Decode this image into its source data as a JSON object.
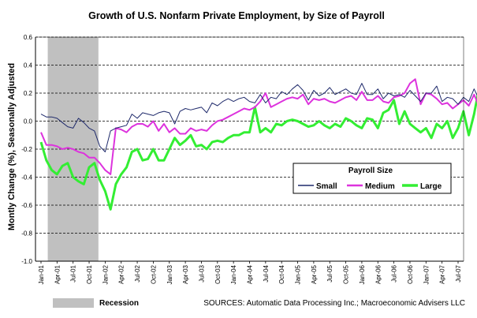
{
  "chart_data": {
    "type": "line",
    "title": "Growth of U.S. Nonfarm Private Employment, by Size of Payroll",
    "xlabel": "",
    "ylabel": "Montly Change (%), Seasonally Adjusted",
    "ylim": [
      -1.0,
      0.6
    ],
    "yticks": [
      "0.6",
      "0.4",
      "0.2",
      "0.0",
      "-0.2",
      "-0.4",
      "-0.6",
      "-0.8",
      "-1.0"
    ],
    "grid": "horizontal dashed",
    "start_month": "Jan-01",
    "x_tick_labels": [
      "Jan-01",
      "Apr-01",
      "Jul-01",
      "Oct-01",
      "Jan-02",
      "Apr-02",
      "Jul-02",
      "Oct-02",
      "Jan-03",
      "Apr-03",
      "Jul-03",
      "Oct-03",
      "Jan-04",
      "Apr-04",
      "Jul-04",
      "Oct-04",
      "Jan-05",
      "Apr-05",
      "Jul-05",
      "Oct-05",
      "Jan-06",
      "Apr-06",
      "Jul-06",
      "Oct-06",
      "Jan-07",
      "Apr-07",
      "Jul-07"
    ],
    "recession": {
      "start": "Mar-01",
      "end": "Nov-01",
      "label": "Recession",
      "color": "#c0c0c0"
    },
    "legend": {
      "title": "Payroll Size",
      "placement": "center-right"
    },
    "series": [
      {
        "name": "Small",
        "color": "#1f2a6b",
        "width": 1,
        "values": [
          0.05,
          0.03,
          0.03,
          0.02,
          -0.01,
          -0.04,
          -0.05,
          0.02,
          -0.01,
          -0.05,
          -0.07,
          -0.18,
          -0.22,
          -0.07,
          -0.05,
          -0.04,
          -0.03,
          0.05,
          0.02,
          0.06,
          0.05,
          0.04,
          0.06,
          0.07,
          0.06,
          -0.02,
          0.07,
          0.09,
          0.08,
          0.09,
          0.1,
          0.06,
          0.13,
          0.11,
          0.14,
          0.16,
          0.14,
          0.16,
          0.17,
          0.14,
          0.13,
          0.19,
          0.13,
          0.17,
          0.16,
          0.21,
          0.19,
          0.23,
          0.26,
          0.22,
          0.15,
          0.22,
          0.18,
          0.2,
          0.24,
          0.19,
          0.21,
          0.23,
          0.2,
          0.19,
          0.27,
          0.19,
          0.19,
          0.23,
          0.16,
          0.2,
          0.18,
          0.19,
          0.17,
          0.22,
          0.18,
          0.14,
          0.2,
          0.2,
          0.25,
          0.14,
          0.17,
          0.16,
          0.12,
          0.17,
          0.14,
          0.23,
          0.15,
          0.14,
          0.12,
          0.13,
          0.17,
          0.16,
          0.16,
          0.12,
          0.14,
          0.16,
          0.17,
          0.14,
          0.12,
          0.08,
          0.13,
          0.18,
          0.05,
          0.09
        ]
      },
      {
        "name": "Medium",
        "color": "#dd33dd",
        "width": 2,
        "values": [
          -0.08,
          -0.17,
          -0.17,
          -0.18,
          -0.2,
          -0.19,
          -0.2,
          -0.22,
          -0.23,
          -0.26,
          -0.26,
          -0.3,
          -0.35,
          -0.38,
          -0.05,
          -0.06,
          -0.08,
          -0.04,
          -0.02,
          -0.02,
          -0.04,
          0.0,
          -0.07,
          -0.02,
          -0.08,
          -0.05,
          -0.09,
          -0.09,
          -0.05,
          -0.07,
          -0.06,
          -0.07,
          -0.03,
          0.0,
          0.01,
          0.03,
          0.05,
          0.07,
          0.09,
          0.08,
          0.1,
          0.14,
          0.2,
          0.1,
          0.12,
          0.14,
          0.16,
          0.17,
          0.16,
          0.19,
          0.12,
          0.16,
          0.15,
          0.16,
          0.14,
          0.13,
          0.15,
          0.17,
          0.18,
          0.15,
          0.21,
          0.15,
          0.15,
          0.18,
          0.14,
          0.13,
          0.17,
          0.18,
          0.2,
          0.27,
          0.3,
          0.12,
          0.2,
          0.19,
          0.16,
          0.12,
          0.13,
          0.09,
          0.12,
          0.15,
          0.11,
          0.19,
          0.1,
          0.1,
          0.07,
          0.13,
          0.1,
          0.06,
          0.13,
          0.09,
          0.1,
          0.08,
          0.09,
          0.07,
          0.06,
          0.08,
          0.1,
          0.07,
          0.04,
          0.06
        ]
      },
      {
        "name": "Large",
        "color": "#33ee33",
        "width": 3,
        "values": [
          -0.15,
          -0.28,
          -0.35,
          -0.38,
          -0.32,
          -0.3,
          -0.4,
          -0.43,
          -0.45,
          -0.33,
          -0.3,
          -0.42,
          -0.5,
          -0.63,
          -0.45,
          -0.38,
          -0.33,
          -0.22,
          -0.2,
          -0.28,
          -0.27,
          -0.2,
          -0.28,
          -0.28,
          -0.2,
          -0.12,
          -0.17,
          -0.14,
          -0.1,
          -0.18,
          -0.17,
          -0.2,
          -0.15,
          -0.14,
          -0.15,
          -0.12,
          -0.1,
          -0.1,
          -0.08,
          -0.08,
          0.1,
          -0.08,
          -0.05,
          -0.08,
          -0.02,
          -0.03,
          0.0,
          0.01,
          0.0,
          -0.02,
          -0.04,
          -0.03,
          0.0,
          -0.03,
          -0.05,
          -0.02,
          -0.04,
          0.02,
          0.0,
          -0.03,
          -0.05,
          0.02,
          0.01,
          -0.05,
          0.06,
          0.08,
          0.15,
          -0.02,
          0.07,
          -0.02,
          -0.05,
          -0.08,
          -0.05,
          -0.12,
          -0.02,
          -0.05,
          0.0,
          -0.12,
          -0.05,
          0.07,
          -0.1,
          0.05,
          0.25,
          0.01,
          -0.03,
          -0.05,
          0.0,
          -0.08,
          -0.1,
          -0.08,
          -0.03,
          0.02,
          -0.04,
          -0.06,
          -0.1,
          -0.14,
          -0.17,
          -0.12,
          -0.15,
          -0.16
        ]
      }
    ]
  },
  "footer": {
    "recession_label": "Recession",
    "sources": "SOURCES: Automatic Data Processing Inc.; Macroeconomic Advisers LLC"
  }
}
